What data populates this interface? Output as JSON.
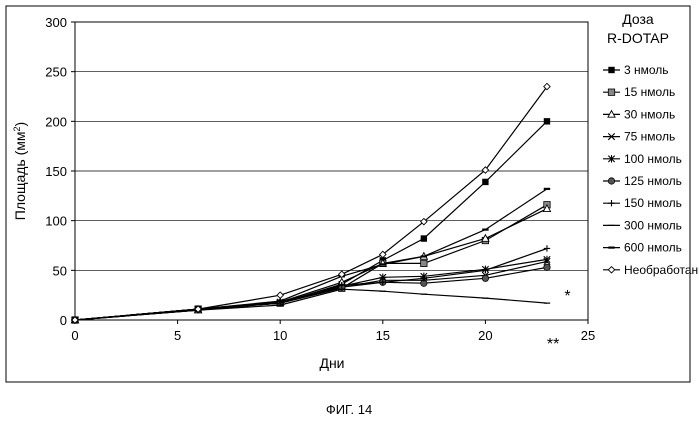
{
  "caption": "ФИГ. 14",
  "chart_data": {
    "type": "line",
    "xlabel": "Дни",
    "ylabel": "Площадь (мм",
    "ylabel_sup": "2",
    "ylabel_end": ")",
    "xlim": [
      0,
      25
    ],
    "ylim": [
      0,
      300
    ],
    "xticks": [
      0,
      5,
      10,
      15,
      20,
      25
    ],
    "yticks": [
      0,
      50,
      100,
      150,
      200,
      250,
      300
    ],
    "grid": "horizontal",
    "legend_position": "right",
    "legend_title_line1": "Доза",
    "legend_title_line2": "R-DOTAP",
    "annotations": [
      {
        "text": "*",
        "x": 24.0,
        "y": 24
      },
      {
        "text": "**",
        "x": 23.3,
        "y": -24
      }
    ],
    "series": [
      {
        "name": "3 нмоль",
        "marker": "square-filled",
        "points": [
          [
            0,
            0
          ],
          [
            6,
            11
          ],
          [
            10,
            17
          ],
          [
            13,
            36
          ],
          [
            15,
            60
          ],
          [
            17,
            82
          ],
          [
            20,
            139
          ],
          [
            23,
            200
          ]
        ]
      },
      {
        "name": "15 нмоль",
        "marker": "square-gray",
        "points": [
          [
            0,
            0
          ],
          [
            6,
            11
          ],
          [
            10,
            17
          ],
          [
            13,
            32
          ],
          [
            15,
            57
          ],
          [
            17,
            57
          ],
          [
            20,
            80
          ],
          [
            23,
            116
          ]
        ]
      },
      {
        "name": "30 нмоль",
        "marker": "triangle-open",
        "points": [
          [
            0,
            0
          ],
          [
            6,
            10
          ],
          [
            10,
            18
          ],
          [
            13,
            38
          ],
          [
            15,
            57
          ],
          [
            17,
            64
          ],
          [
            20,
            82
          ],
          [
            23,
            112
          ]
        ]
      },
      {
        "name": "75 нмоль",
        "marker": "x",
        "points": [
          [
            0,
            0
          ],
          [
            6,
            11
          ],
          [
            10,
            17
          ],
          [
            13,
            33
          ],
          [
            15,
            40
          ],
          [
            17,
            40
          ],
          [
            20,
            45
          ],
          [
            23,
            59
          ]
        ]
      },
      {
        "name": "100 нмоль",
        "marker": "star",
        "points": [
          [
            0,
            0
          ],
          [
            6,
            11
          ],
          [
            10,
            18
          ],
          [
            13,
            34
          ],
          [
            15,
            43
          ],
          [
            17,
            44
          ],
          [
            20,
            51
          ],
          [
            23,
            61
          ]
        ]
      },
      {
        "name": "125 нмоль",
        "marker": "circle-filled",
        "points": [
          [
            0,
            0
          ],
          [
            6,
            11
          ],
          [
            10,
            17
          ],
          [
            13,
            33
          ],
          [
            15,
            38
          ],
          [
            17,
            37
          ],
          [
            20,
            42
          ],
          [
            23,
            53
          ]
        ]
      },
      {
        "name": "150 нмоль",
        "marker": "plus",
        "points": [
          [
            0,
            0
          ],
          [
            6,
            10
          ],
          [
            10,
            17
          ],
          [
            13,
            35
          ],
          [
            15,
            38
          ],
          [
            17,
            42
          ],
          [
            20,
            50
          ],
          [
            23,
            72
          ]
        ]
      },
      {
        "name": "300 нмоль",
        "marker": "dash",
        "points": [
          [
            0,
            0
          ],
          [
            6,
            10
          ],
          [
            10,
            15
          ],
          [
            13,
            31
          ],
          [
            15,
            29
          ],
          [
            17,
            26
          ],
          [
            20,
            22
          ],
          [
            23,
            17
          ]
        ]
      },
      {
        "name": "600 нмоль",
        "marker": "dash-thick",
        "points": [
          [
            0,
            0
          ],
          [
            6,
            11
          ],
          [
            10,
            19
          ],
          [
            13,
            44
          ],
          [
            15,
            56
          ],
          [
            17,
            64
          ],
          [
            20,
            91
          ],
          [
            23,
            132
          ]
        ]
      },
      {
        "name": "Необработанный",
        "marker": "diamond-open",
        "points": [
          [
            0,
            0
          ],
          [
            6,
            11
          ],
          [
            10,
            25
          ],
          [
            13,
            46
          ],
          [
            15,
            66
          ],
          [
            17,
            99
          ],
          [
            20,
            151
          ],
          [
            23,
            235
          ]
        ]
      }
    ]
  }
}
